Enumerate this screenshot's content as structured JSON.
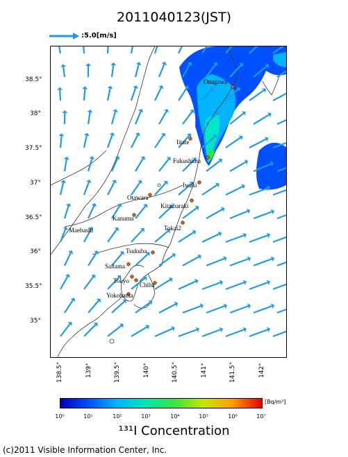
{
  "title": "2011040123(JST)",
  "wind_legend": {
    "label": ":5.0[m/s]"
  },
  "axes": {
    "lat_labels": [
      "38.5°",
      "38°",
      "37.5°",
      "37°",
      "36.5°",
      "36°",
      "35.5°",
      "35°"
    ],
    "lon_labels": [
      "138.5°",
      "139°",
      "139.5°",
      "140°",
      "140.5°",
      "141°",
      "141.5°",
      "142°"
    ]
  },
  "cities": [
    "Onagawa",
    "Iitate",
    "Fukushima",
    "Iwaki",
    "Otawara",
    "Kitaibaraki",
    "Kanuma",
    "Tokai2",
    "Maebashi",
    "Tsukuba",
    "Saitama",
    "Tokyo",
    "Chiba",
    "Yokohama"
  ],
  "colorbar": {
    "unit": "[Bq/m³]",
    "ticks": [
      "10⁰",
      "10¹",
      "10²",
      "10³",
      "10⁴",
      "10⁵",
      "10⁶",
      "10⁷"
    ],
    "title": "¹³¹I Concentration"
  },
  "copyright": "(c)2011 Visible Information Center, Inc.",
  "colors": {
    "arrow": "#1e9be6",
    "plume_dark": "#0050ff",
    "plume_light": "#00c8ff",
    "city_dot": "#c86428"
  }
}
